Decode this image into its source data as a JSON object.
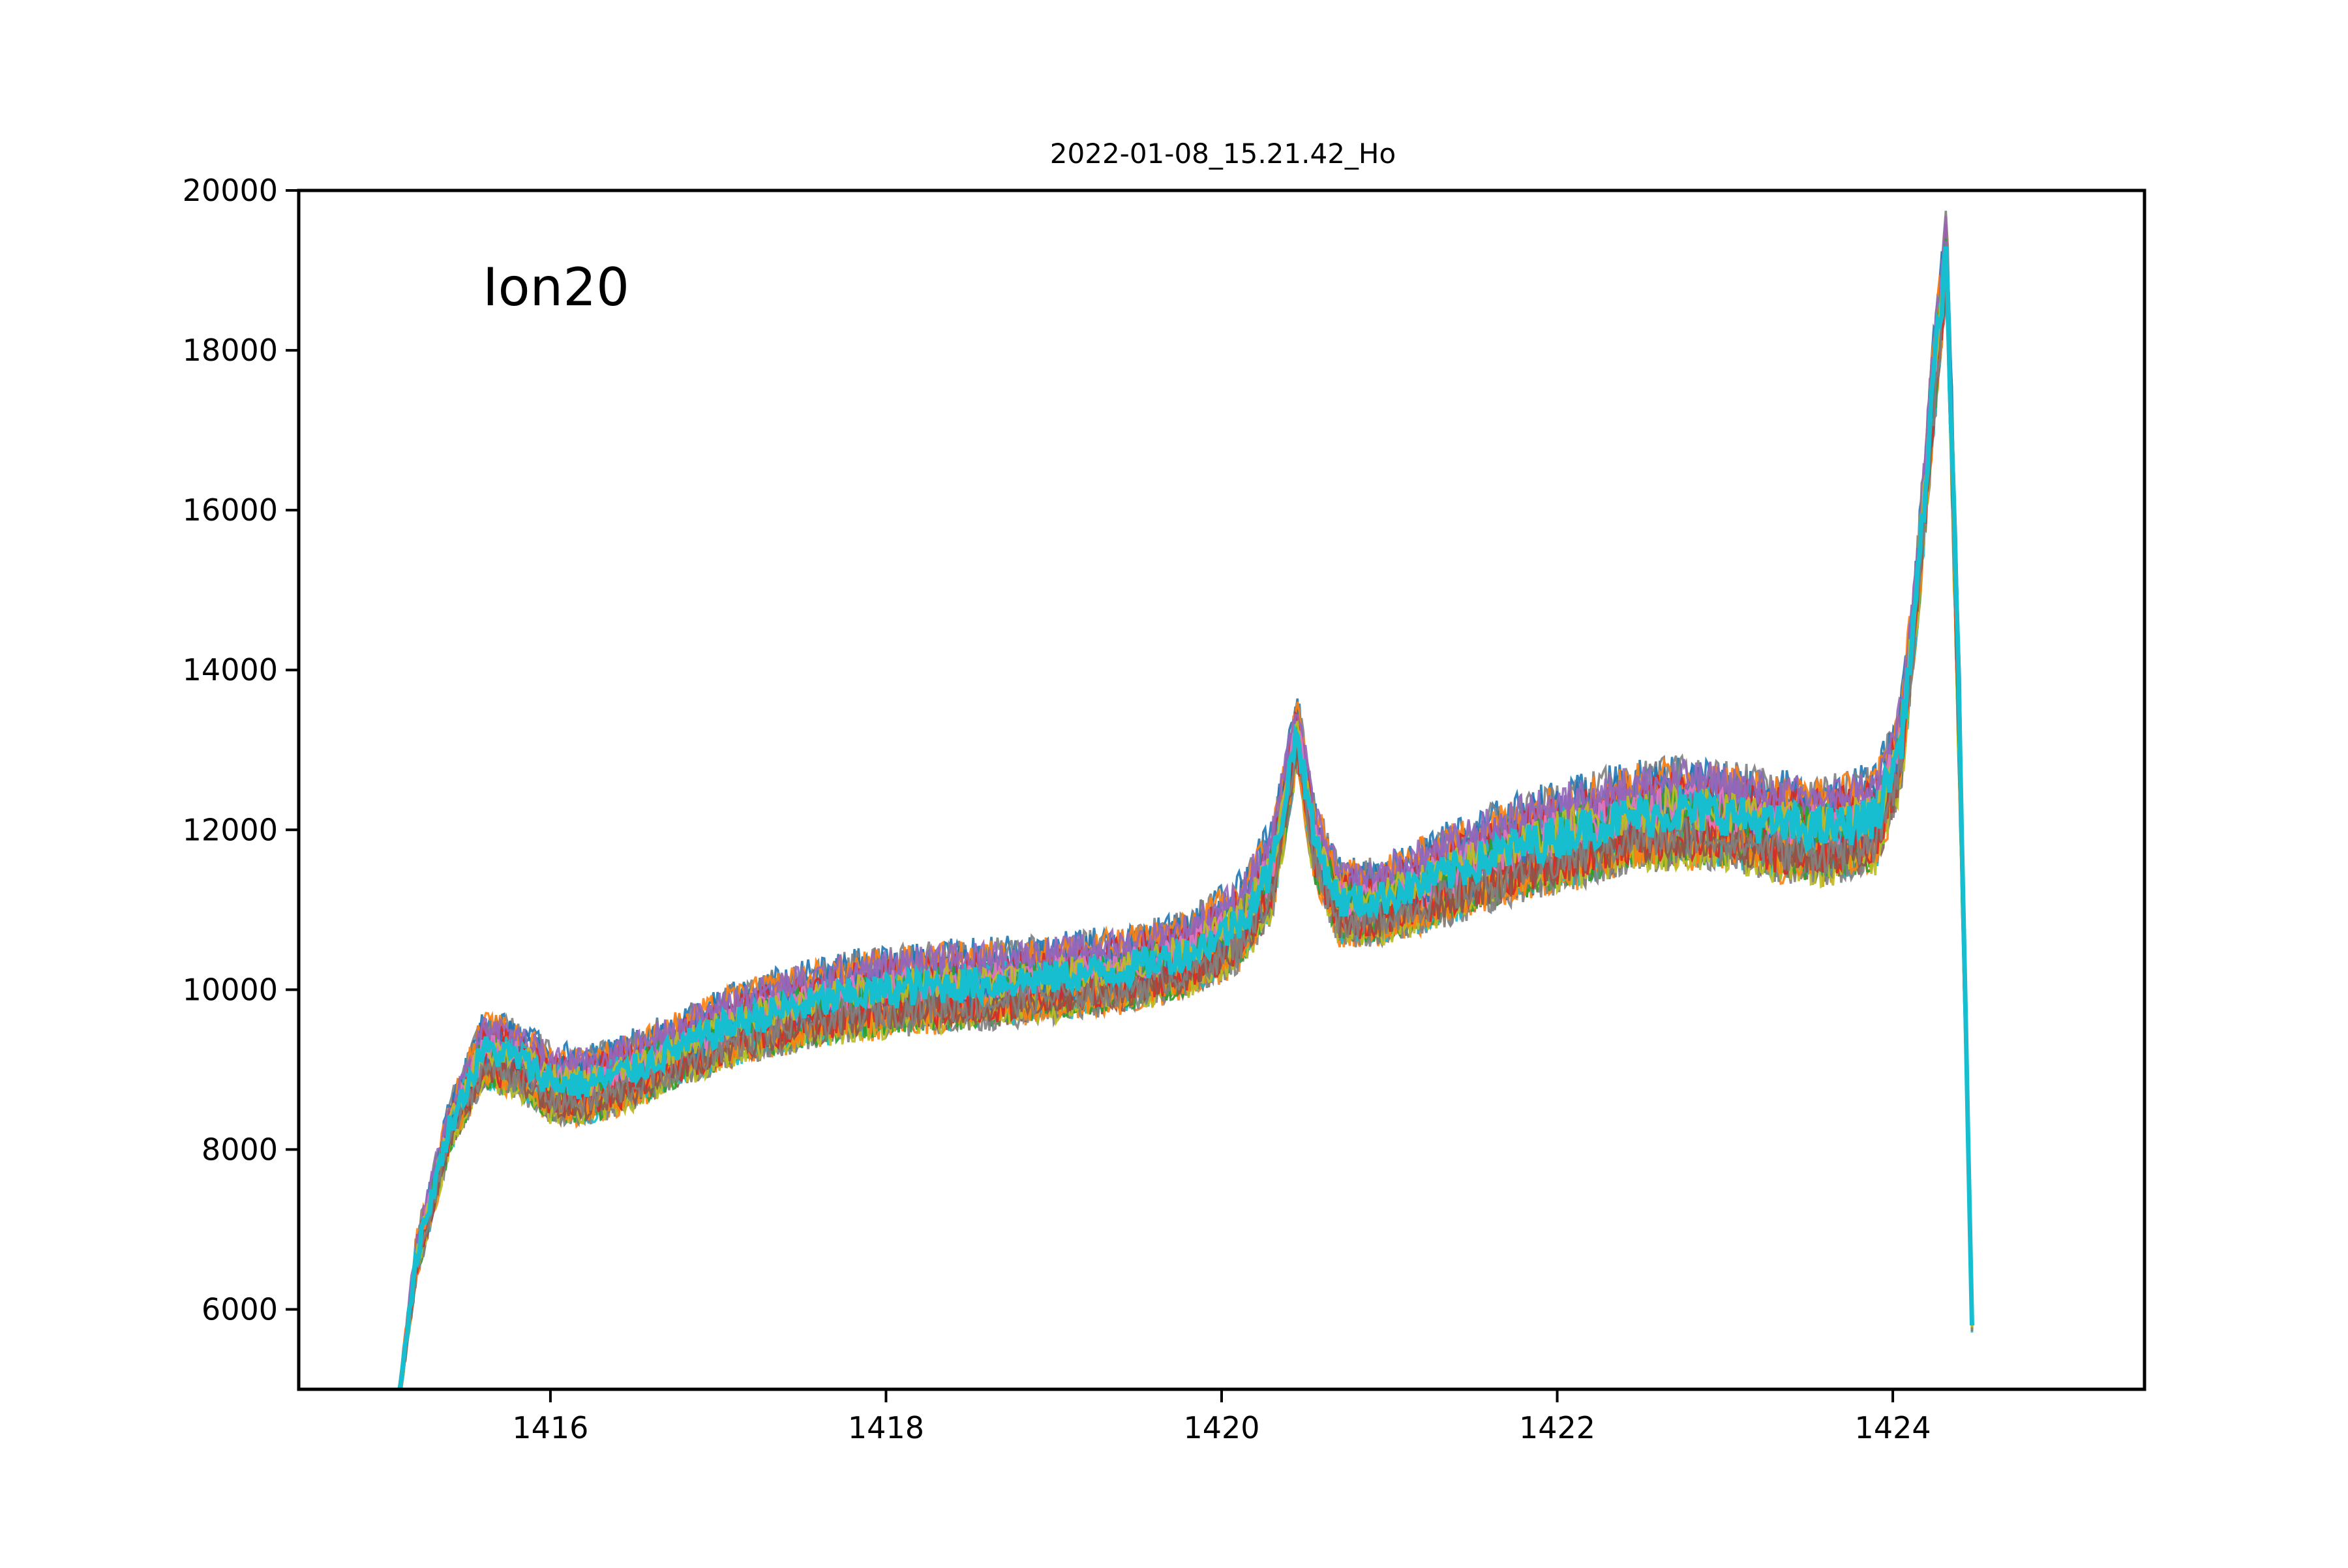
{
  "chart_data": {
    "type": "line",
    "title": "2022-01-08_15.21.42_Ho",
    "annotation": "Ion20",
    "xlabel": "",
    "ylabel": "",
    "xlim": [
      1414.5,
      1425.5
    ],
    "ylim": [
      5000,
      20000
    ],
    "x_ticks": [
      1416,
      1418,
      1420,
      1422,
      1424
    ],
    "x_tick_labels": [
      "1416",
      "1418",
      "1420",
      "1422",
      "1424"
    ],
    "y_ticks": [
      6000,
      8000,
      10000,
      12000,
      14000,
      16000,
      18000,
      20000
    ],
    "y_tick_labels": [
      "6000",
      "8000",
      "10000",
      "12000",
      "14000",
      "16000",
      "18000",
      "20000"
    ],
    "grid": false,
    "legend": "none",
    "series_count_estimate": 40,
    "band_envelope": {
      "x": [
        1415.1,
        1415.2,
        1415.4,
        1415.6,
        1415.8,
        1416.0,
        1416.2,
        1416.5,
        1416.8,
        1417.1,
        1417.4,
        1417.8,
        1418.2,
        1418.6,
        1419.0,
        1419.4,
        1419.8,
        1420.1,
        1420.3,
        1420.45,
        1420.55,
        1420.7,
        1420.9,
        1421.2,
        1421.5,
        1421.8,
        1422.1,
        1422.4,
        1422.7,
        1423.0,
        1423.3,
        1423.6,
        1423.9,
        1424.05,
        1424.15,
        1424.25,
        1424.32,
        1424.4,
        1424.48
      ],
      "lower": [
        4800,
        6300,
        7900,
        8700,
        8600,
        8300,
        8250,
        8450,
        8750,
        9000,
        9150,
        9300,
        9400,
        9450,
        9550,
        9650,
        9850,
        10150,
        10800,
        12700,
        11300,
        10500,
        10500,
        10650,
        10850,
        11050,
        11200,
        11400,
        11450,
        11450,
        11300,
        11250,
        11400,
        12400,
        14500,
        17000,
        18600,
        12000,
        5000
      ],
      "upper": [
        5100,
        7000,
        8700,
        9800,
        9700,
        9400,
        9350,
        9550,
        9850,
        10150,
        10350,
        10550,
        10650,
        10700,
        10750,
        10850,
        11050,
        11500,
        12200,
        13800,
        12500,
        11700,
        11700,
        12000,
        12300,
        12550,
        12750,
        12900,
        13000,
        12950,
        12800,
        12750,
        12900,
        13800,
        15800,
        18500,
        20000,
        14000,
        5000
      ]
    },
    "colors": [
      "#1f77b4",
      "#ff7f0e",
      "#2ca02c",
      "#d62728",
      "#9467bd",
      "#8c564b",
      "#e377c2",
      "#7f7f7f",
      "#bcbd22",
      "#17becf"
    ]
  }
}
